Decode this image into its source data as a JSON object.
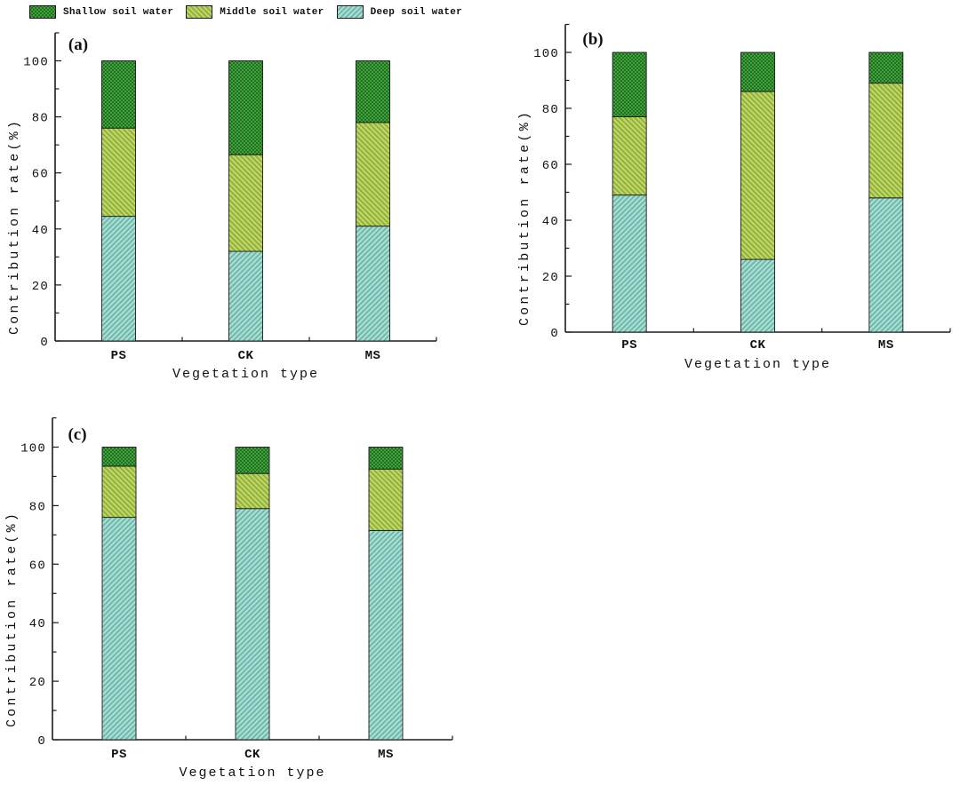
{
  "figure": {
    "background": "#ffffff"
  },
  "legend": {
    "items": [
      {
        "label": "Shallow soil water",
        "series": "shallow"
      },
      {
        "label": "Middle soil water",
        "series": "middle"
      },
      {
        "label": "Deep soil water",
        "series": "deep"
      }
    ]
  },
  "colors": {
    "axis": "#1c1c1c",
    "text": "#111111",
    "bar_outline": "#1a1a1a",
    "shallow_base": "#3fa23e",
    "shallow_hatch": "#236f20",
    "middle_base": "#bed55f",
    "middle_hatch": "#87a93c",
    "deep_base": "#a8dcd2",
    "deep_hatch": "#62b2a4"
  },
  "chart_data": [
    {
      "type": "bar",
      "stacked": true,
      "panel": "(a)",
      "xlabel": "Vegetation type",
      "ylabel": "Contribution rate(%)",
      "categories": [
        "PS",
        "CK",
        "MS"
      ],
      "ylim": [
        0,
        110
      ],
      "yticks": [
        0,
        20,
        40,
        60,
        80,
        100
      ],
      "legend_position": "top-left-outside",
      "grid": false,
      "series": [
        {
          "name": "Deep soil water",
          "key": "deep",
          "values": [
            44.5,
            32,
            41
          ]
        },
        {
          "name": "Middle soil water",
          "key": "middle",
          "values": [
            31.5,
            34.5,
            37
          ]
        },
        {
          "name": "Shallow soil water",
          "key": "shallow",
          "values": [
            24,
            33.5,
            22
          ]
        }
      ]
    },
    {
      "type": "bar",
      "stacked": true,
      "panel": "(b)",
      "xlabel": "Vegetation type",
      "ylabel": "Contribution rate(%)",
      "categories": [
        "PS",
        "CK",
        "MS"
      ],
      "ylim": [
        0,
        110
      ],
      "yticks": [
        0,
        20,
        40,
        60,
        80,
        100
      ],
      "grid": false,
      "series": [
        {
          "name": "Deep soil water",
          "key": "deep",
          "values": [
            49,
            26,
            48
          ]
        },
        {
          "name": "Middle soil water",
          "key": "middle",
          "values": [
            28,
            60,
            41
          ]
        },
        {
          "name": "Shallow soil water",
          "key": "shallow",
          "values": [
            23,
            14,
            11
          ]
        }
      ]
    },
    {
      "type": "bar",
      "stacked": true,
      "panel": "(c)",
      "xlabel": "Vegetation type",
      "ylabel": "Contribution rate(%)",
      "categories": [
        "PS",
        "CK",
        "MS"
      ],
      "ylim": [
        0,
        110
      ],
      "yticks": [
        0,
        20,
        40,
        60,
        80,
        100
      ],
      "grid": false,
      "series": [
        {
          "name": "Deep soil water",
          "key": "deep",
          "values": [
            76,
            79,
            71.5
          ]
        },
        {
          "name": "Middle soil water",
          "key": "middle",
          "values": [
            17.5,
            12,
            21
          ]
        },
        {
          "name": "Shallow soil water",
          "key": "shallow",
          "values": [
            6.5,
            9,
            7.5
          ]
        }
      ]
    }
  ]
}
